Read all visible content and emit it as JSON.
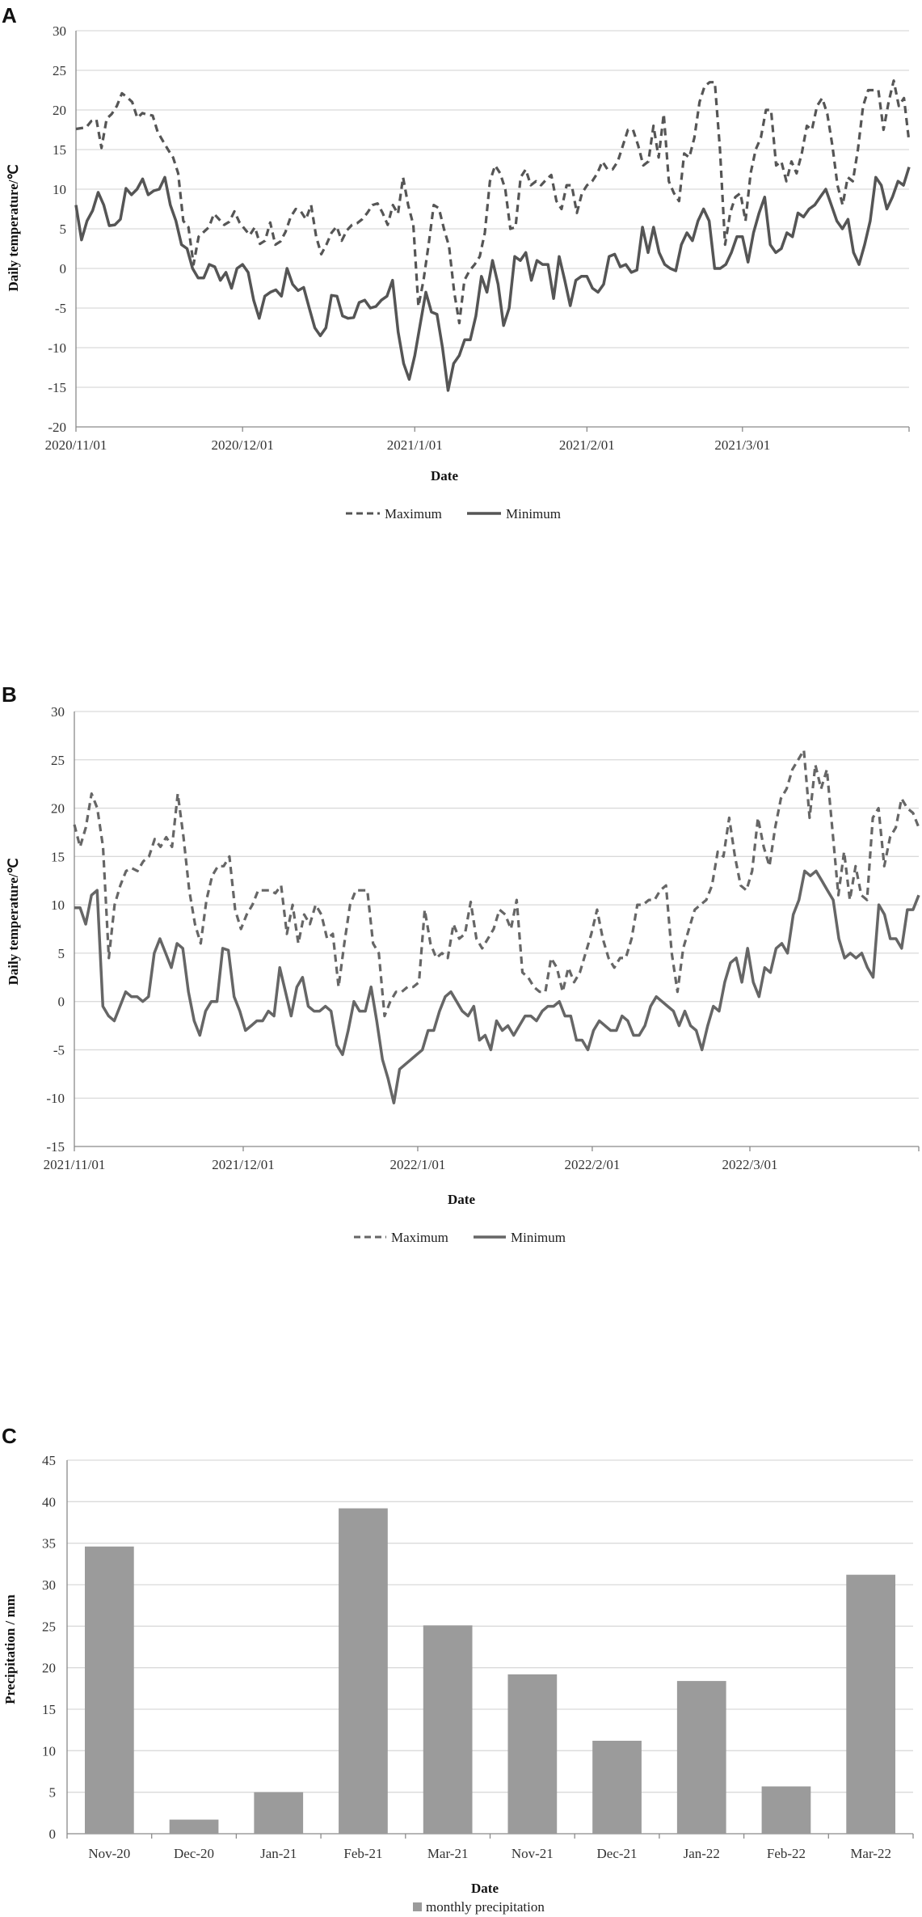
{
  "chart_data": [
    {
      "panel": "A",
      "type": "line",
      "xlabel": "Date",
      "ylabel": "Daily temperature/℃",
      "ylim": [
        -20,
        30
      ],
      "yticks": [
        30,
        25,
        20,
        15,
        10,
        5,
        0,
        -5,
        -10,
        -15,
        -20
      ],
      "x_start": "2020/11/01",
      "x_end": "2021/03/31",
      "xtick_labels": [
        "2020/11/01",
        "2020/12/01",
        "2021/1/01",
        "2021/2/01",
        "2021/3/01"
      ],
      "grid": "horizontal",
      "legend_position": "bottom",
      "series": [
        {
          "name": "Maximum",
          "style": "dashed",
          "color": "#555555",
          "values": [
            17.6,
            17.7,
            17.8,
            18.6,
            18.8,
            15.2,
            18.9,
            19.5,
            20.5,
            22.1,
            21.6,
            21.0,
            19.0,
            19.6,
            19.4,
            19.3,
            17.2,
            16.1,
            15.0,
            14.0,
            12.0,
            6.0,
            5.2,
            0.5,
            4.0,
            4.6,
            5.2,
            6.9,
            6.2,
            5.5,
            5.9,
            7.2,
            5.8,
            5.0,
            4.2,
            5.2,
            3.1,
            3.5,
            5.8,
            3.0,
            3.4,
            4.6,
            6.5,
            7.5,
            7.2,
            6.2,
            8.0,
            4.0,
            1.8,
            3.0,
            4.5,
            5.3,
            3.5,
            4.8,
            5.5,
            5.7,
            6.2,
            7.0,
            8.0,
            8.2,
            7.0,
            5.5,
            8.0,
            6.9,
            11.5,
            8.0,
            5.5,
            -4.8,
            -1.5,
            3.0,
            8.0,
            7.6,
            5.0,
            2.8,
            -3.0,
            -6.9,
            -1.5,
            -0.3,
            0.5,
            1.5,
            4.5,
            11.0,
            13.0,
            12.0,
            10.0,
            5.0,
            5.2,
            11.5,
            12.5,
            10.5,
            11.0,
            10.5,
            11.2,
            11.8,
            8.5,
            7.5,
            10.5,
            10.5,
            7.0,
            9.5,
            10.5,
            11.0,
            12.0,
            13.5,
            12.5,
            12.5,
            13.5,
            15.5,
            17.5,
            17.5,
            15.5,
            13.0,
            13.5,
            18.0,
            14.0,
            19.5,
            11.0,
            9.5,
            8.5,
            14.5,
            14.0,
            16.5,
            21.0,
            23.0,
            23.5,
            23.5,
            15.0,
            3.0,
            7.0,
            9.0,
            9.5,
            6.0,
            12.0,
            15.0,
            16.5,
            20.0,
            20.0,
            13.0,
            13.5,
            11.0,
            13.5,
            12.0,
            14.5,
            18.0,
            17.5,
            20.5,
            21.5,
            19.5,
            15.5,
            10.5,
            8.0,
            11.5,
            11.0,
            15.0,
            20.5,
            22.5,
            22.5,
            22.5,
            17.5,
            21.0,
            23.7,
            20.5,
            21.5,
            16.0
          ]
        },
        {
          "name": "Minimum",
          "style": "solid",
          "color": "#555555",
          "values": [
            8.0,
            3.6,
            6.0,
            7.3,
            9.6,
            8.0,
            5.4,
            5.5,
            6.2,
            10.1,
            9.3,
            10.0,
            11.3,
            9.3,
            9.8,
            10.0,
            11.5,
            8.0,
            6.0,
            3.0,
            2.5,
            0.0,
            -1.2,
            -1.2,
            0.5,
            0.2,
            -1.5,
            -0.5,
            -2.5,
            0.0,
            0.5,
            -0.5,
            -4.0,
            -6.3,
            -3.5,
            -3.0,
            -2.7,
            -3.5,
            0.0,
            -2.0,
            -2.8,
            -2.4,
            -5.0,
            -7.5,
            -8.5,
            -7.5,
            -3.4,
            -3.5,
            -6.0,
            -6.3,
            -6.2,
            -4.3,
            -4.0,
            -5.0,
            -4.8,
            -4.0,
            -3.5,
            -1.5,
            -8.0,
            -12.0,
            -14.0,
            -11.0,
            -7.0,
            -3.0,
            -5.5,
            -5.8,
            -10.0,
            -15.4,
            -12.0,
            -11.0,
            -9.0,
            -9.0,
            -6.0,
            -1.0,
            -3.0,
            1.0,
            -2.0,
            -7.2,
            -5.0,
            1.5,
            1.0,
            2.0,
            -1.5,
            1.0,
            0.5,
            0.5,
            -3.8,
            1.5,
            -1.5,
            -4.7,
            -1.5,
            -1.0,
            -1.0,
            -2.5,
            -3.0,
            -2.0,
            1.5,
            1.8,
            0.2,
            0.5,
            -0.5,
            -0.2,
            5.2,
            2.0,
            5.2,
            2.0,
            0.5,
            0.0,
            -0.3,
            3.0,
            4.5,
            3.5,
            6.0,
            7.5,
            6.0,
            0.0,
            0.0,
            0.5,
            2.0,
            4.0,
            4.0,
            0.8,
            4.5,
            7.0,
            9.0,
            3.0,
            2.0,
            2.5,
            4.5,
            4.0,
            7.0,
            6.5,
            7.5,
            8.0,
            9.0,
            10.0,
            8.0,
            6.0,
            5.0,
            6.2,
            2.0,
            0.5,
            3.0,
            6.0,
            11.5,
            10.5,
            7.5,
            9.0,
            11.0,
            10.5,
            12.8
          ]
        }
      ]
    },
    {
      "panel": "B",
      "type": "line",
      "xlabel": "Date",
      "ylabel": "Daily temperature/℃",
      "ylim": [
        -15,
        30
      ],
      "yticks": [
        30,
        25,
        20,
        15,
        10,
        5,
        0,
        -5,
        -10,
        -15
      ],
      "x_start": "2021/11/01",
      "x_end": "2022/03/31",
      "xtick_labels": [
        "2021/11/01",
        "2021/12/01",
        "2022/1/01",
        "2022/2/01",
        "2022/3/01"
      ],
      "grid": "horizontal",
      "legend_position": "bottom",
      "series": [
        {
          "name": "Maximum",
          "style": "dashed",
          "color": "#666666",
          "values": [
            18.3,
            16.0,
            18.0,
            21.5,
            20.0,
            16.0,
            4.5,
            10.0,
            12.0,
            13.5,
            13.8,
            13.5,
            14.5,
            15.0,
            16.8,
            16.0,
            17.0,
            16.0,
            21.5,
            17.0,
            11.5,
            8.0,
            6.0,
            10.5,
            13.0,
            14.0,
            14.0,
            15.0,
            9.5,
            7.5,
            9.0,
            10.0,
            11.5,
            11.5,
            11.5,
            11.2,
            12.0,
            7.0,
            10.0,
            6.0,
            9.0,
            8.0,
            10.0,
            9.0,
            6.5,
            7.0,
            1.5,
            6.0,
            10.0,
            11.5,
            11.5,
            11.5,
            6.0,
            5.0,
            -1.5,
            0.0,
            1.0,
            1.0,
            1.5,
            1.5,
            2.0,
            9.5,
            6.0,
            4.5,
            5.0,
            4.5,
            8.0,
            6.5,
            7.0,
            10.3,
            6.5,
            5.5,
            6.5,
            7.5,
            9.5,
            9.0,
            7.5,
            10.5,
            3.0,
            2.5,
            1.5,
            1.0,
            1.0,
            4.5,
            3.5,
            1.0,
            3.5,
            2.0,
            3.0,
            5.0,
            7.0,
            9.5,
            6.5,
            4.5,
            3.5,
            4.5,
            4.5,
            6.5,
            10.0,
            10.0,
            10.5,
            10.5,
            11.5,
            12.0,
            5.0,
            1.0,
            5.5,
            7.5,
            9.5,
            10.0,
            10.5,
            12.0,
            15.5,
            15.0,
            19.0,
            15.0,
            12.0,
            11.5,
            13.5,
            19.0,
            16.0,
            14.0,
            18.0,
            21.0,
            22.0,
            24.0,
            25.0,
            26.0,
            19.0,
            24.5,
            22.0,
            24.0,
            17.5,
            11.0,
            15.5,
            10.5,
            14.0,
            11.0,
            10.5,
            19.0,
            20.0,
            14.0,
            17.0,
            18.0,
            21.0,
            20.0,
            19.5,
            18.0
          ]
        },
        {
          "name": "Minimum",
          "style": "solid",
          "color": "#666666",
          "values": [
            9.7,
            9.7,
            8.0,
            11.0,
            11.5,
            -0.5,
            -1.5,
            -2.0,
            -0.5,
            1.0,
            0.5,
            0.5,
            0.0,
            0.5,
            5.0,
            6.5,
            5.0,
            3.5,
            6.0,
            5.5,
            1.0,
            -2.0,
            -3.5,
            -1.0,
            0.0,
            0.0,
            5.5,
            5.3,
            0.5,
            -1.0,
            -3.0,
            -2.5,
            -2.0,
            -2.0,
            -1.0,
            -1.5,
            3.5,
            1.0,
            -1.5,
            1.5,
            2.5,
            -0.5,
            -1.0,
            -1.0,
            -0.5,
            -1.0,
            -4.5,
            -5.5,
            -3.0,
            0.0,
            -1.0,
            -1.0,
            1.5,
            -2.0,
            -6.0,
            -8.0,
            -10.5,
            -7.0,
            -6.5,
            -6.0,
            -5.5,
            -5.0,
            -3.0,
            -3.0,
            -1.0,
            0.5,
            1.0,
            0.0,
            -1.0,
            -1.5,
            -0.5,
            -4.0,
            -3.5,
            -5.0,
            -2.0,
            -3.0,
            -2.5,
            -3.5,
            -2.5,
            -1.5,
            -1.5,
            -2.0,
            -1.0,
            -0.5,
            -0.5,
            0.0,
            -1.5,
            -1.5,
            -4.0,
            -4.0,
            -5.0,
            -3.0,
            -2.0,
            -2.5,
            -3.0,
            -3.0,
            -1.5,
            -2.0,
            -3.5,
            -3.5,
            -2.5,
            -0.5,
            0.5,
            0.0,
            -0.5,
            -1.0,
            -2.5,
            -1.0,
            -2.5,
            -3.0,
            -5.0,
            -2.5,
            -0.5,
            -1.0,
            2.0,
            4.0,
            4.5,
            2.0,
            5.5,
            2.0,
            0.5,
            3.5,
            3.0,
            5.5,
            6.0,
            5.0,
            9.0,
            10.5,
            13.5,
            13.0,
            13.5,
            12.5,
            11.5,
            10.5,
            6.5,
            4.5,
            5.0,
            4.5,
            5.0,
            3.5,
            2.5,
            10.0,
            9.0,
            6.5,
            6.5,
            5.5,
            9.5,
            9.5,
            11.0
          ]
        }
      ]
    },
    {
      "panel": "C",
      "type": "bar",
      "xlabel": "Date",
      "ylabel": "Precipitation / mm",
      "ylim": [
        0,
        45
      ],
      "yticks": [
        45,
        40,
        35,
        30,
        25,
        20,
        15,
        10,
        5,
        0
      ],
      "grid": "horizontal",
      "legend_position": "bottom",
      "categories": [
        "Nov-20",
        "Dec-20",
        "Jan-21",
        "Feb-21",
        "Mar-21",
        "Nov-21",
        "Dec-21",
        "Jan-22",
        "Feb-22",
        "Mar-22"
      ],
      "series": [
        {
          "name": "monthly precipitation",
          "color": "#9b9b9b",
          "values": [
            34.6,
            1.7,
            5.0,
            39.2,
            25.1,
            19.2,
            11.2,
            18.4,
            5.7,
            31.2
          ]
        }
      ]
    }
  ]
}
